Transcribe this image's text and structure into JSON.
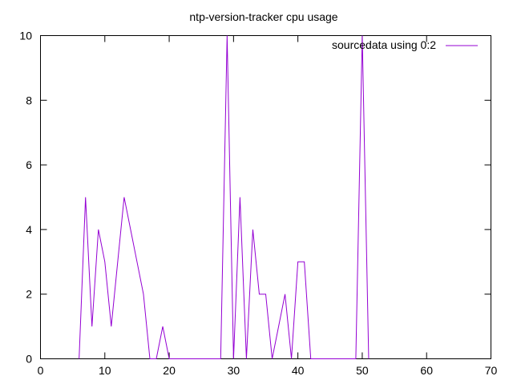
{
  "chart_data": {
    "type": "line",
    "title": "ntp-version-tracker cpu usage",
    "xlabel": "",
    "ylabel": "",
    "xlim": [
      0,
      70
    ],
    "ylim": [
      0,
      10
    ],
    "xticks": [
      "0",
      "10",
      "20",
      "30",
      "40",
      "50",
      "60",
      "70"
    ],
    "yticks": [
      "0",
      "2",
      "4",
      "6",
      "8",
      "10"
    ],
    "grid": false,
    "legend": "top-right",
    "series_color": "#9400d3",
    "series": [
      {
        "name": "sourcedata using 0:2",
        "x": [
          6,
          7,
          8,
          9,
          10,
          11,
          12,
          13,
          14,
          15,
          16,
          17,
          18,
          19,
          20,
          21,
          22,
          23,
          24,
          25,
          26,
          27,
          28,
          29,
          30,
          31,
          32,
          33,
          34,
          35,
          36,
          37,
          38,
          39,
          40,
          41,
          42,
          43,
          44,
          45,
          46,
          47,
          48,
          49,
          50,
          51
        ],
        "values": [
          0,
          5,
          1,
          4,
          3,
          1,
          3,
          5,
          4,
          3,
          2,
          0,
          0,
          1,
          0,
          0,
          0,
          0,
          0,
          0,
          0,
          0,
          0,
          10,
          0,
          5,
          0,
          4,
          2,
          2,
          0,
          1,
          2,
          0,
          3,
          3,
          0,
          0,
          0,
          0,
          0,
          0,
          0,
          0,
          10,
          0
        ]
      }
    ]
  }
}
